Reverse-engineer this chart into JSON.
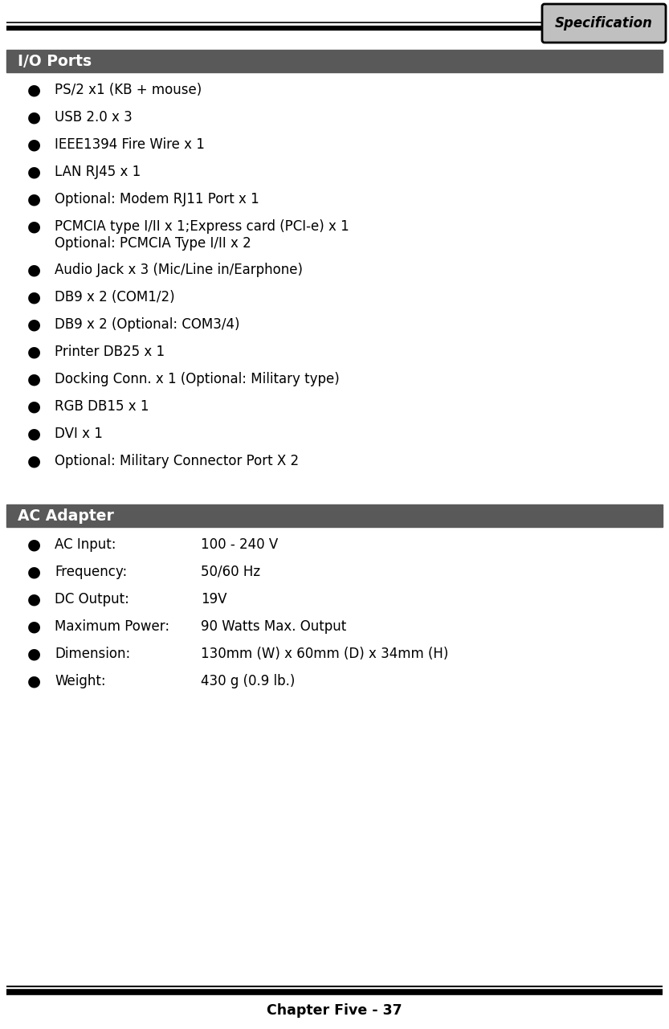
{
  "page_bg": "#ffffff",
  "header_tab_text": "Specification",
  "header_tab_bg": "#c0c0c0",
  "header_tab_border": "#000000",
  "section1_title": "I/O Ports",
  "section1_header_bg": "#595959",
  "section1_header_text_color": "#ffffff",
  "section2_title": "AC Adapter",
  "section2_header_bg": "#595959",
  "section2_header_text_color": "#ffffff",
  "section1_items_main": [
    "PS/2 x1 (KB + mouse)",
    "USB 2.0 x 3",
    "IEEE1394 Fire Wire x 1",
    "LAN RJ45 x 1",
    "Optional: Modem RJ11 Port x 1",
    "PCMCIA type I/II x 1;Express card (PCI-e) x 1",
    "Audio Jack x 3 (Mic/Line in/Earphone)",
    "DB9 x 2 (COM1/2)",
    "DB9 x 2 (Optional: COM3/4)",
    "Printer DB25 x 1",
    "Docking Conn. x 1 (Optional: Military type)",
    "RGB DB15 x 1",
    "DVI x 1",
    "Optional: Military Connector Port X 2"
  ],
  "pcmcia_sub": "    Optional: PCMCIA Type I/II x 2",
  "pcmcia_index": 5,
  "section2_items": [
    [
      "AC Input:",
      "100 - 240 V"
    ],
    [
      "Frequency:",
      "50/60 Hz"
    ],
    [
      "DC Output:",
      "19V"
    ],
    [
      "Maximum Power:",
      "90 Watts Max. Output"
    ],
    [
      "Dimension:",
      "130mm (W) x 60mm (D) x 34mm (H)"
    ],
    [
      "Weight:",
      "430 g (0.9 lb.)"
    ]
  ],
  "footer_text": "Chapter Five - 37",
  "top_line_color": "#000000",
  "bottom_line_color": "#000000",
  "bullet_color": "#000000",
  "text_color": "#000000",
  "font_size": 12,
  "section_font_size": 13.5,
  "header_font_size": 12,
  "footer_font_size": 12.5
}
